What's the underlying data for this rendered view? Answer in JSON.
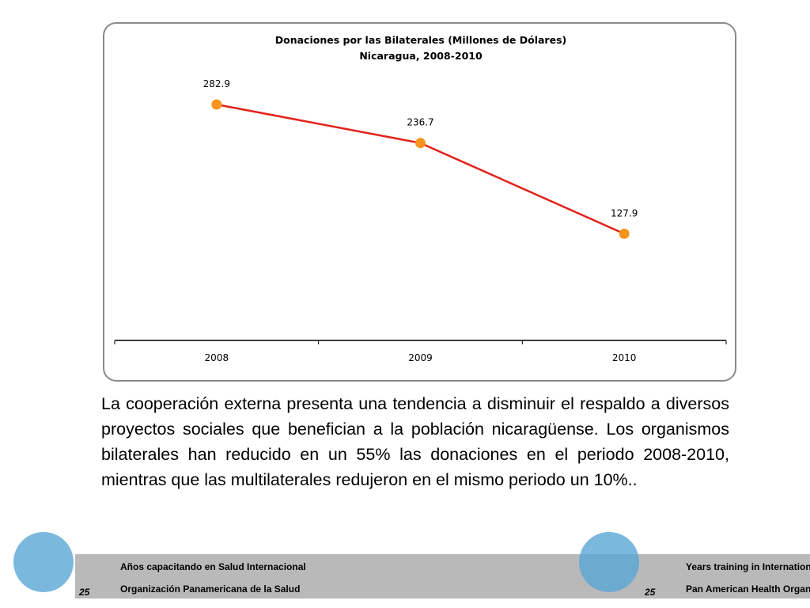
{
  "chart_data": {
    "type": "line",
    "title": "Donaciones por las Bilaterales (Millones de Dólares)",
    "subtitle": "Nicaragua, 2008-2010",
    "categories": [
      "2008",
      "2009",
      "2010"
    ],
    "values": [
      282.9,
      236.7,
      127.9
    ],
    "color": "#e3231b",
    "marker_color": "#f7941d",
    "ylim": [
      0,
      300
    ]
  },
  "body_text": "La cooperación externa presenta una tendencia a disminuir el respaldo a diversos proyectos sociales que benefician a la población nicaragüense. Los organismos bilaterales han reducido en un 55% las donaciones en el periodo 2008-2010, mientras que las multilaterales redujeron en el mismo periodo un 10%..",
  "footer": {
    "left_number": "25",
    "left_line": "Años capacitando en Salud Internacional",
    "left_org": "Organización Panamericana de la Salud",
    "right_number": "25",
    "right_line": "Years training in International Health",
    "right_org": "Pan American Health Organization"
  }
}
